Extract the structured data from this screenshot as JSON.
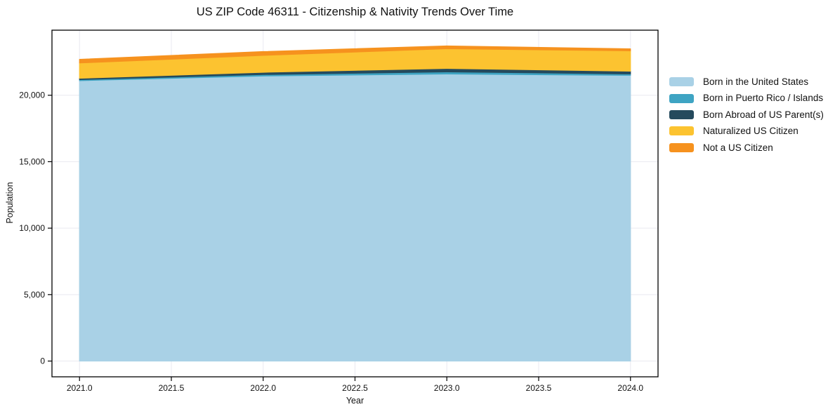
{
  "figure": {
    "background": "#ffffff",
    "frame_color": "#000000",
    "grid_color": "#e9e9f0",
    "text_color": "#111111"
  },
  "chart_data": {
    "type": "area",
    "stacked": true,
    "title": "US ZIP Code 46311 - Citizenship & Nativity Trends Over Time",
    "xlabel": "Year",
    "ylabel": "Population",
    "x": [
      2021,
      2022,
      2023,
      2024
    ],
    "series": [
      {
        "name": "Born in the United States",
        "color": "#a9d1e6",
        "values": [
          21100,
          21450,
          21600,
          21500
        ]
      },
      {
        "name": "Born in Puerto Rico / Islands",
        "color": "#3ea4c3",
        "values": [
          80,
          110,
          160,
          105
        ]
      },
      {
        "name": "Born Abroad of US Parent(s)",
        "color": "#254a5d",
        "values": [
          100,
          170,
          260,
          210
        ]
      },
      {
        "name": "Naturalized US Citizen",
        "color": "#fcc330",
        "values": [
          1150,
          1270,
          1480,
          1530
        ]
      },
      {
        "name": "Not a US Citizen",
        "color": "#f6921e",
        "values": [
          270,
          285,
          210,
          145
        ]
      }
    ],
    "xlim": [
      2020.85,
      2024.15
    ],
    "ylim": [
      -1186,
      24896
    ],
    "xticks": {
      "values": [
        2021.0,
        2021.5,
        2022.0,
        2022.5,
        2023.0,
        2023.5,
        2024.0
      ],
      "labels": [
        "2021.0",
        "2021.5",
        "2022.0",
        "2022.5",
        "2023.0",
        "2023.5",
        "2024.0"
      ]
    },
    "yticks": {
      "values": [
        0,
        5000,
        10000,
        15000,
        20000
      ],
      "labels": [
        "0",
        "5,000",
        "10,000",
        "15,000",
        "20,000"
      ]
    },
    "grid": true,
    "legend_position": "right"
  }
}
